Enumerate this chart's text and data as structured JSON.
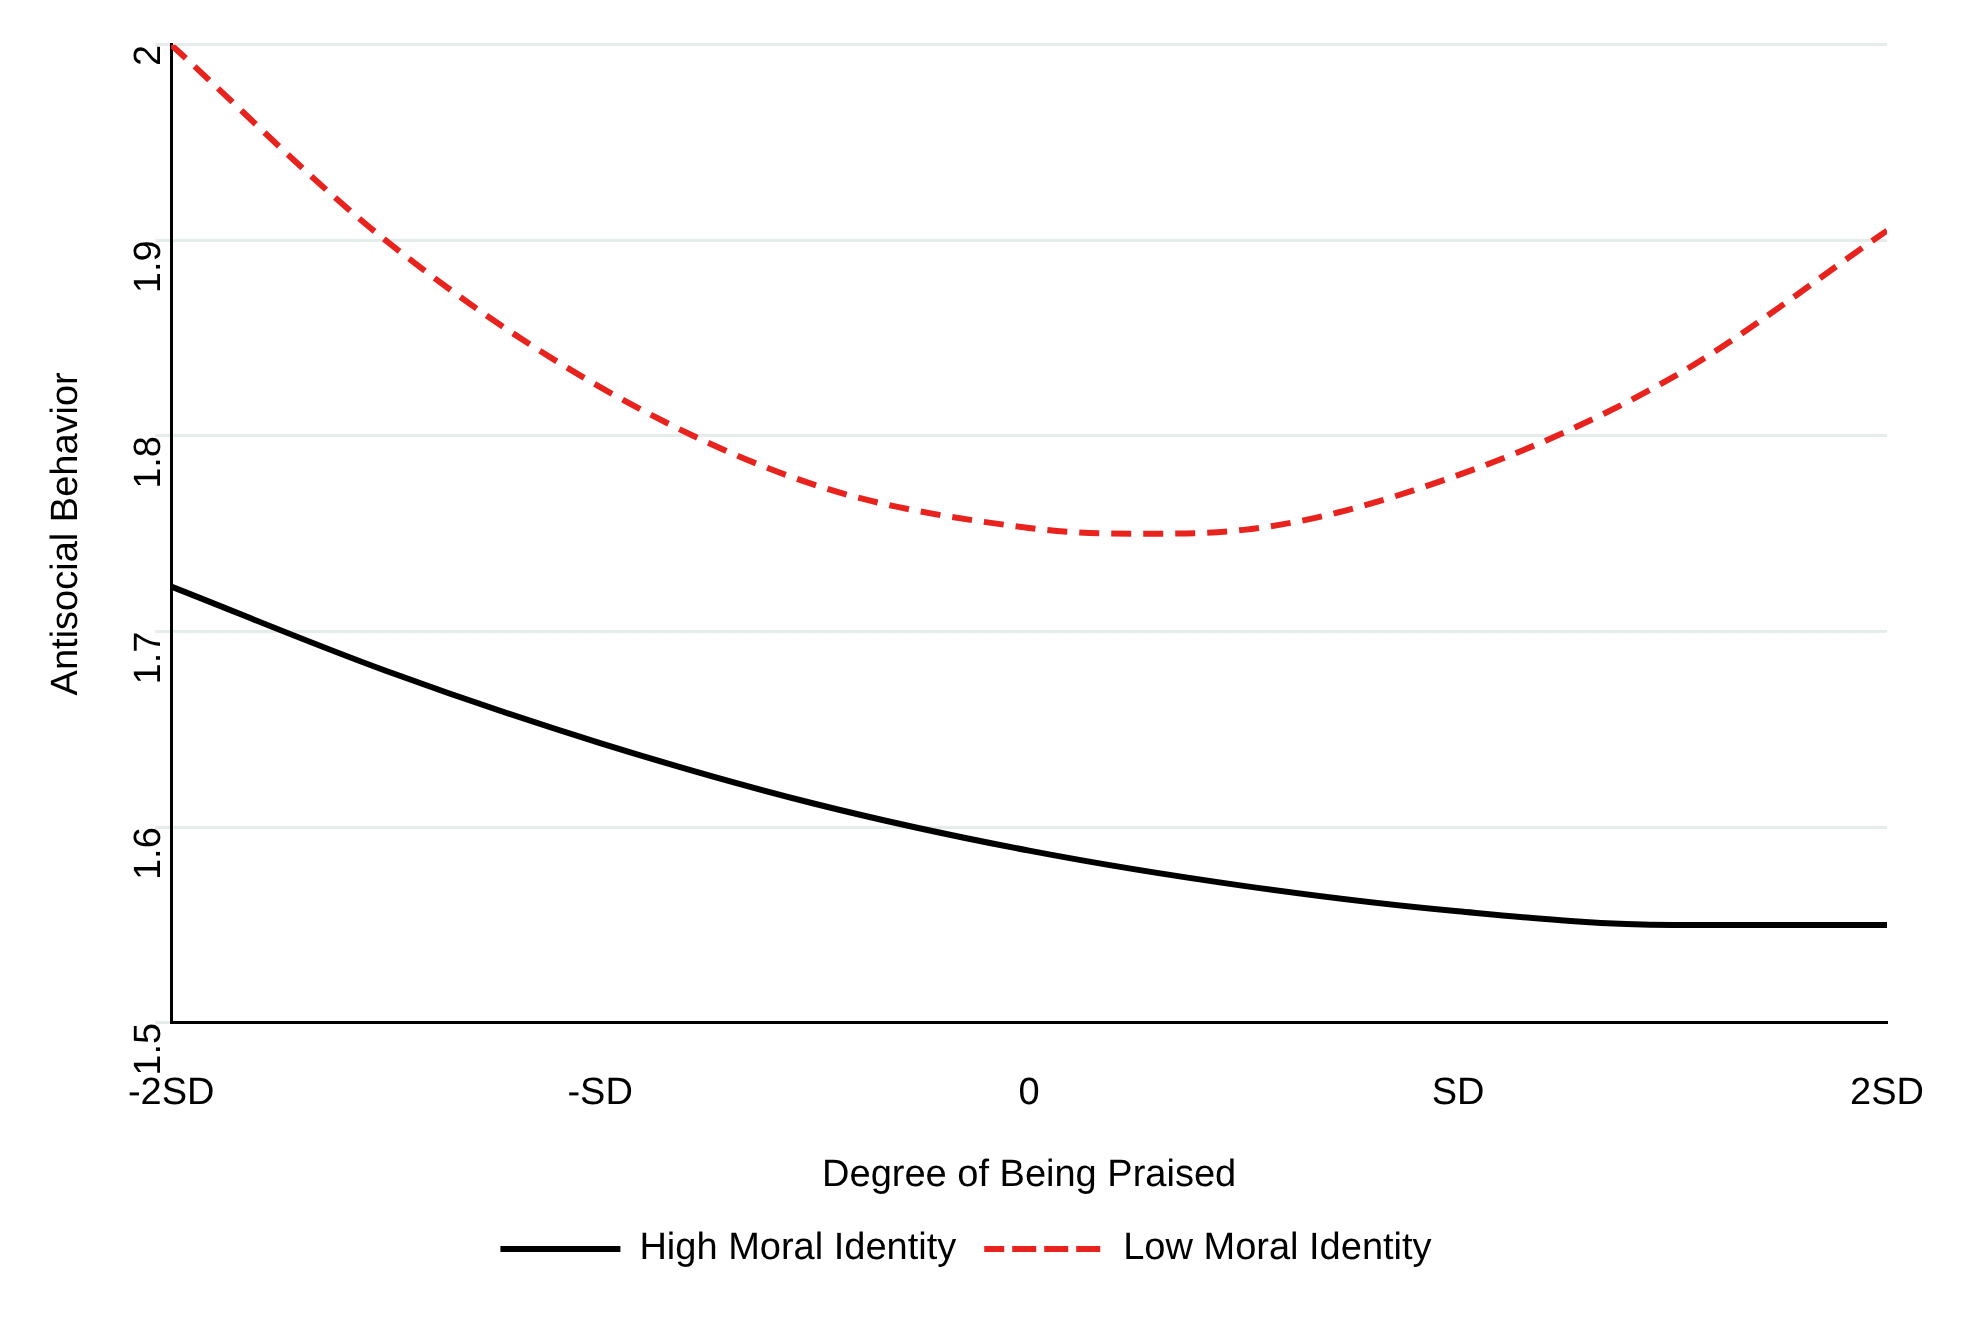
{
  "chart_data": {
    "type": "line",
    "xlabel": "Degree of Being Praised",
    "ylabel": "Antisocial Behavior",
    "xlim": [
      -2,
      2
    ],
    "xticks": [
      {
        "value": -2,
        "label": "-2SD"
      },
      {
        "value": -1,
        "label": "-SD"
      },
      0,
      {
        "value": 1,
        "label": "SD"
      },
      {
        "value": 2,
        "label": "2SD"
      }
    ],
    "ylim": [
      1.5,
      2
    ],
    "yticks": [
      1.5,
      1.6,
      1.7,
      1.8,
      1.9,
      2
    ],
    "grid": "y",
    "legend": "bottom",
    "marker": "none",
    "series": [
      {
        "name": "High Moral Identity",
        "color": "#000000",
        "line_style": "solid",
        "x": [
          -2,
          -1.5,
          -1,
          -0.5,
          0,
          0.5,
          1,
          1.5,
          2
        ],
        "values": [
          1.723,
          1.68,
          1.643,
          1.612,
          1.588,
          1.57,
          1.557,
          1.55,
          1.55
        ]
      },
      {
        "name": "Low Moral Identity",
        "color": "#e8231e",
        "line_style": "dashed",
        "x": [
          -2,
          -1.5,
          -1,
          -0.5,
          0,
          0.25,
          0.5,
          1,
          1.5,
          2
        ],
        "values": [
          2.0,
          1.9,
          1.825,
          1.775,
          1.753,
          1.75,
          1.752,
          1.78,
          1.83,
          1.905
        ]
      }
    ]
  }
}
